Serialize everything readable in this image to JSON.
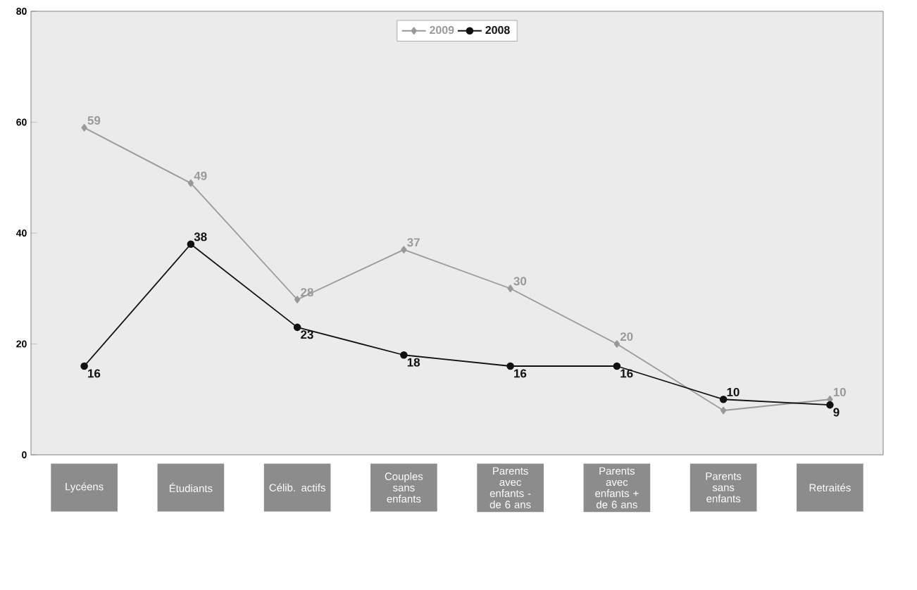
{
  "chart_data": {
    "type": "line",
    "categories": [
      "Lycéens",
      "Étudiants",
      "Célib. actifs",
      "Couples sans enfants",
      "Parents avec enfants - de 6 ans",
      "Parents avec enfants + de 6 ans",
      "Parents sans enfants",
      "Retraités"
    ],
    "series": [
      {
        "name": "2009",
        "color": "#999999",
        "marker": "diamond",
        "values": [
          59,
          49,
          28,
          37,
          30,
          20,
          8,
          10
        ],
        "value_labels": [
          "59",
          "49",
          "28",
          "37",
          "30",
          "20",
          null,
          "10"
        ]
      },
      {
        "name": "2008",
        "color": "#111111",
        "marker": "circle",
        "values": [
          16,
          38,
          23,
          18,
          16,
          16,
          10,
          9
        ],
        "value_labels": [
          "16",
          "38",
          "23",
          "18",
          "16",
          "16",
          "10",
          "9"
        ]
      }
    ],
    "ylim": [
      0,
      80
    ],
    "yticks": [
      0,
      20,
      40,
      60,
      80
    ],
    "grid": false,
    "legend": "top",
    "line_style": "solid"
  }
}
